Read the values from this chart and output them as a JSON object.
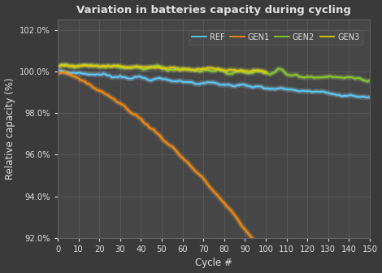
{
  "title": "Variation in batteries capacity during cycling",
  "xlabel": "Cycle #",
  "ylabel": "Relative capacity (%)",
  "background_color": "#3a3a3a",
  "plot_bg_color": "#464646",
  "grid_color": "#5c5c5c",
  "text_color": "#e0e0e0",
  "xlim": [
    0,
    150
  ],
  "ylim": [
    0.92,
    1.025
  ],
  "yticks": [
    0.92,
    0.94,
    0.96,
    0.98,
    1.0,
    1.02
  ],
  "xticks": [
    0,
    10,
    20,
    30,
    40,
    50,
    60,
    70,
    80,
    90,
    100,
    110,
    120,
    130,
    140,
    150
  ],
  "series": {
    "REF": {
      "color": "#55ccff",
      "glow": "#99ddff",
      "max_cycle": 150
    },
    "GEN1": {
      "color": "#ff8800",
      "glow": "#ffaa44",
      "max_cycle": 150
    },
    "GEN2": {
      "color": "#88cc22",
      "glow": "#aadd66",
      "max_cycle": 150
    },
    "GEN3": {
      "color": "#ddcc00",
      "glow": "#eedd44",
      "max_cycle": 100
    }
  },
  "series_order": [
    "REF",
    "GEN1",
    "GEN2",
    "GEN3"
  ]
}
